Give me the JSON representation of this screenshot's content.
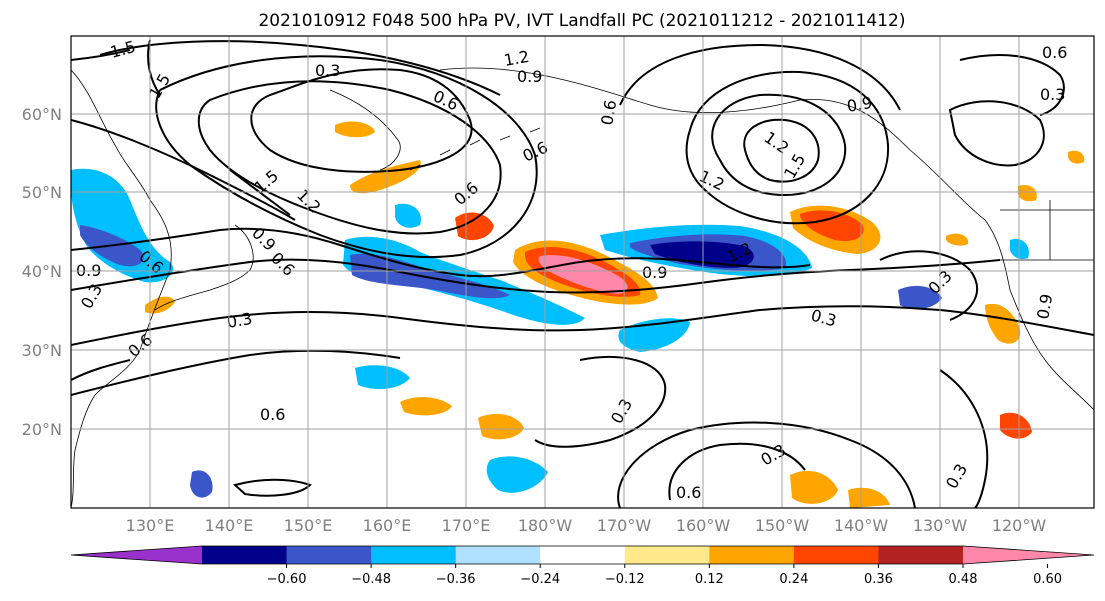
{
  "title": "2021010912 F048 500 hPa PV, IVT Landfall PC (2021011212 - 2021011412)",
  "lat_labels": [
    "60°N",
    "50°N",
    "40°N",
    "30°N",
    "20°N"
  ],
  "lon_labels": [
    "130°E",
    "140°E",
    "150°E",
    "160°E",
    "170°E",
    "180°W",
    "170°W",
    "160°W",
    "150°W",
    "140°W",
    "130°W",
    "120°W"
  ],
  "colorbar": {
    "colors": [
      "#9932cc",
      "#00008b",
      "#3a56c8",
      "#00bfff",
      "#b0e0ff",
      "#ffffff",
      "#ffe98a",
      "#ffa500",
      "#ff4500",
      "#b22222",
      "#ff88aa"
    ],
    "tick_labels": [
      "−0.60",
      "−0.48",
      "−0.36",
      "−0.24",
      "−0.12",
      "0.12",
      "0.24",
      "0.36",
      "0.48",
      "0.60"
    ]
  },
  "contour_labels": [
    "1.5",
    "1.5",
    "0.3",
    "1.2",
    "0.9",
    "0.6",
    "0.6",
    "0.9",
    "1.2",
    "1.5",
    "0.6",
    "0.6",
    "1.2",
    "0.6",
    "1.5",
    "1.2",
    "0.9",
    "0.6",
    "0.9",
    "0.6",
    "0.9",
    "1.2",
    "0.9",
    "0.3",
    "0.3",
    "0.6",
    "0.3",
    "0.3",
    "0.6",
    "0.3",
    "0.3",
    "0.6",
    "0.3",
    "0.3"
  ]
}
